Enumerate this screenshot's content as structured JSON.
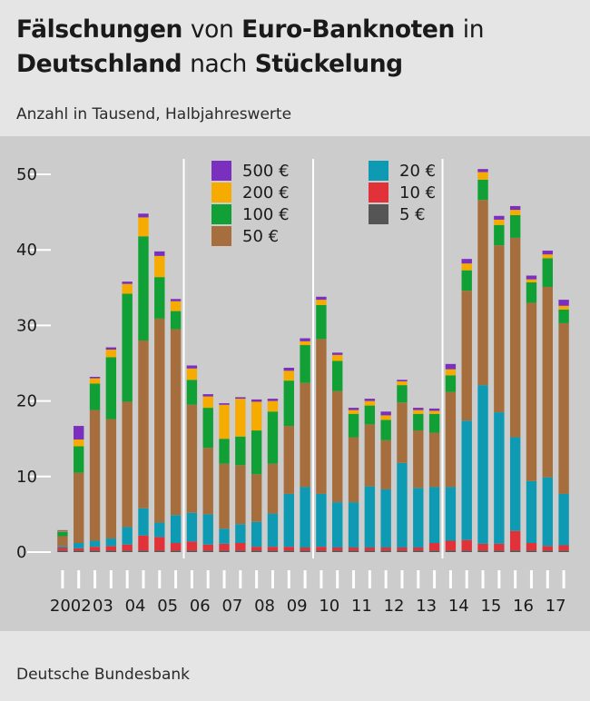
{
  "title_bold_1": "Fälschungen",
  "title_plain_1": "von",
  "title_bold_2": "Euro-Banknoten",
  "title_plain_2": "in",
  "title_bold_3": "Deutschland",
  "title_plain_3": "nach",
  "title_bold_4": "Stückelung",
  "subtitle": "Anzahl in Tausend, Halbjahreswerte",
  "source": "Deutsche Bundesbank",
  "legend": {
    "left": [
      {
        "label": "500 €",
        "color": "#7b2fbe"
      },
      {
        "label": "200 €",
        "color": "#f5ab00"
      },
      {
        "label": "100 €",
        "color": "#10a035"
      },
      {
        "label": "50 €",
        "color": "#a66e3c"
      }
    ],
    "right": [
      {
        "label": "20 €",
        "color": "#0f9ab4"
      },
      {
        "label": "10 €",
        "color": "#e03238"
      },
      {
        "label": "5 €",
        "color": "#555555"
      }
    ]
  },
  "chart_data": {
    "type": "bar",
    "stacked": true,
    "ylim": [
      0,
      52
    ],
    "yticks": [
      0,
      10,
      20,
      30,
      40,
      50
    ],
    "grid": false,
    "legend_position": "top-center",
    "x_labels": [
      {
        "label": "2002",
        "index": 0.5
      },
      {
        "label": "03",
        "index": 2.5
      },
      {
        "label": "04",
        "index": 4.5
      },
      {
        "label": "05",
        "index": 6.5
      },
      {
        "label": "06",
        "index": 8.5
      },
      {
        "label": "07",
        "index": 10.5
      },
      {
        "label": "08",
        "index": 12.5
      },
      {
        "label": "09",
        "index": 14.5
      },
      {
        "label": "10",
        "index": 16.5
      },
      {
        "label": "11",
        "index": 18.5
      },
      {
        "label": "12",
        "index": 20.5
      },
      {
        "label": "13",
        "index": 22.5
      },
      {
        "label": "14",
        "index": 24.5
      },
      {
        "label": "15",
        "index": 26.5
      },
      {
        "label": "16",
        "index": 28.5
      },
      {
        "label": "17",
        "index": 30.5
      }
    ],
    "categories": [
      "2002 H1",
      "2002 H2",
      "2003 H1",
      "2003 H2",
      "2004 H1",
      "2004 H2",
      "2005 H1",
      "2005 H2",
      "2006 H1",
      "2006 H2",
      "2007 H1",
      "2007 H2",
      "2008 H1",
      "2008 H2",
      "2009 H1",
      "2009 H2",
      "2010 H1",
      "2010 H2",
      "2011 H1",
      "2011 H2",
      "2012 H1",
      "2012 H2",
      "2013 H1",
      "2013 H2",
      "2014 H1",
      "2014 H2",
      "2015 H1",
      "2015 H2",
      "2016 H1",
      "2016 H2",
      "2017 H1",
      "2017 H2"
    ],
    "series": [
      {
        "name": "5 €",
        "color": "#555555",
        "values": [
          0.2,
          0.2,
          0.2,
          0.2,
          0.2,
          0.2,
          0.2,
          0.2,
          0.2,
          0.2,
          0.2,
          0.2,
          0.2,
          0.2,
          0.2,
          0.2,
          0.2,
          0.2,
          0.2,
          0.2,
          0.2,
          0.2,
          0.2,
          0.2,
          0.2,
          0.2,
          0.2,
          0.2,
          0.2,
          0.2,
          0.2,
          0.2
        ]
      },
      {
        "name": "10 €",
        "color": "#e03238",
        "values": [
          0.4,
          0.3,
          0.5,
          0.6,
          0.8,
          2.0,
          1.8,
          1.0,
          1.2,
          0.8,
          0.9,
          1.0,
          0.5,
          0.5,
          0.5,
          0.4,
          0.5,
          0.4,
          0.4,
          0.4,
          0.4,
          0.4,
          0.4,
          1.0,
          1.3,
          1.4,
          0.9,
          0.9,
          2.6,
          1.0,
          0.6,
          0.7
        ]
      },
      {
        "name": "20 €",
        "color": "#0f9ab4",
        "values": [
          0.2,
          0.7,
          0.8,
          1.0,
          2.3,
          3.6,
          1.9,
          3.7,
          3.8,
          4.0,
          2.0,
          2.5,
          3.3,
          4.4,
          7.0,
          8.0,
          7.0,
          6.0,
          6.0,
          8.1,
          7.7,
          11.2,
          7.9,
          7.4,
          7.1,
          15.8,
          21.0,
          17.4,
          12.4,
          8.2,
          9.1,
          6.8
        ]
      },
      {
        "name": "50 €",
        "color": "#a66e3c",
        "values": [
          1.3,
          9.3,
          17.3,
          15.8,
          16.6,
          22.2,
          27.0,
          24.6,
          14.3,
          8.8,
          8.6,
          7.8,
          6.3,
          6.6,
          9.0,
          13.8,
          20.5,
          14.7,
          8.6,
          8.2,
          6.5,
          8.0,
          7.6,
          7.2,
          12.6,
          17.2,
          24.5,
          22.1,
          26.4,
          23.6,
          25.2,
          22.6
        ]
      },
      {
        "name": "100 €",
        "color": "#10a035",
        "values": [
          0.6,
          3.5,
          3.5,
          8.2,
          14.3,
          13.8,
          5.5,
          2.4,
          3.3,
          5.3,
          3.3,
          3.8,
          5.8,
          6.9,
          6.0,
          5.0,
          4.5,
          4.0,
          3.1,
          2.5,
          2.7,
          2.3,
          2.2,
          2.5,
          2.2,
          2.7,
          2.7,
          2.7,
          3.0,
          2.7,
          3.8,
          1.8
        ]
      },
      {
        "name": "200 €",
        "color": "#f5ab00",
        "values": [
          0.1,
          0.9,
          0.7,
          1.0,
          1.3,
          2.5,
          2.8,
          1.3,
          1.5,
          1.5,
          4.5,
          5.0,
          3.8,
          1.4,
          1.3,
          0.5,
          0.7,
          0.8,
          0.5,
          0.6,
          0.6,
          0.5,
          0.5,
          0.4,
          0.8,
          0.9,
          1.0,
          0.7,
          0.7,
          0.4,
          0.5,
          0.5
        ]
      },
      {
        "name": "500 €",
        "color": "#7b2fbe",
        "values": [
          0.1,
          1.8,
          0.2,
          0.3,
          0.3,
          0.5,
          0.6,
          0.3,
          0.4,
          0.3,
          0.2,
          0.2,
          0.3,
          0.3,
          0.4,
          0.4,
          0.4,
          0.3,
          0.3,
          0.3,
          0.5,
          0.2,
          0.3,
          0.3,
          0.7,
          0.6,
          0.4,
          0.5,
          0.5,
          0.5,
          0.5,
          0.8
        ]
      }
    ]
  }
}
